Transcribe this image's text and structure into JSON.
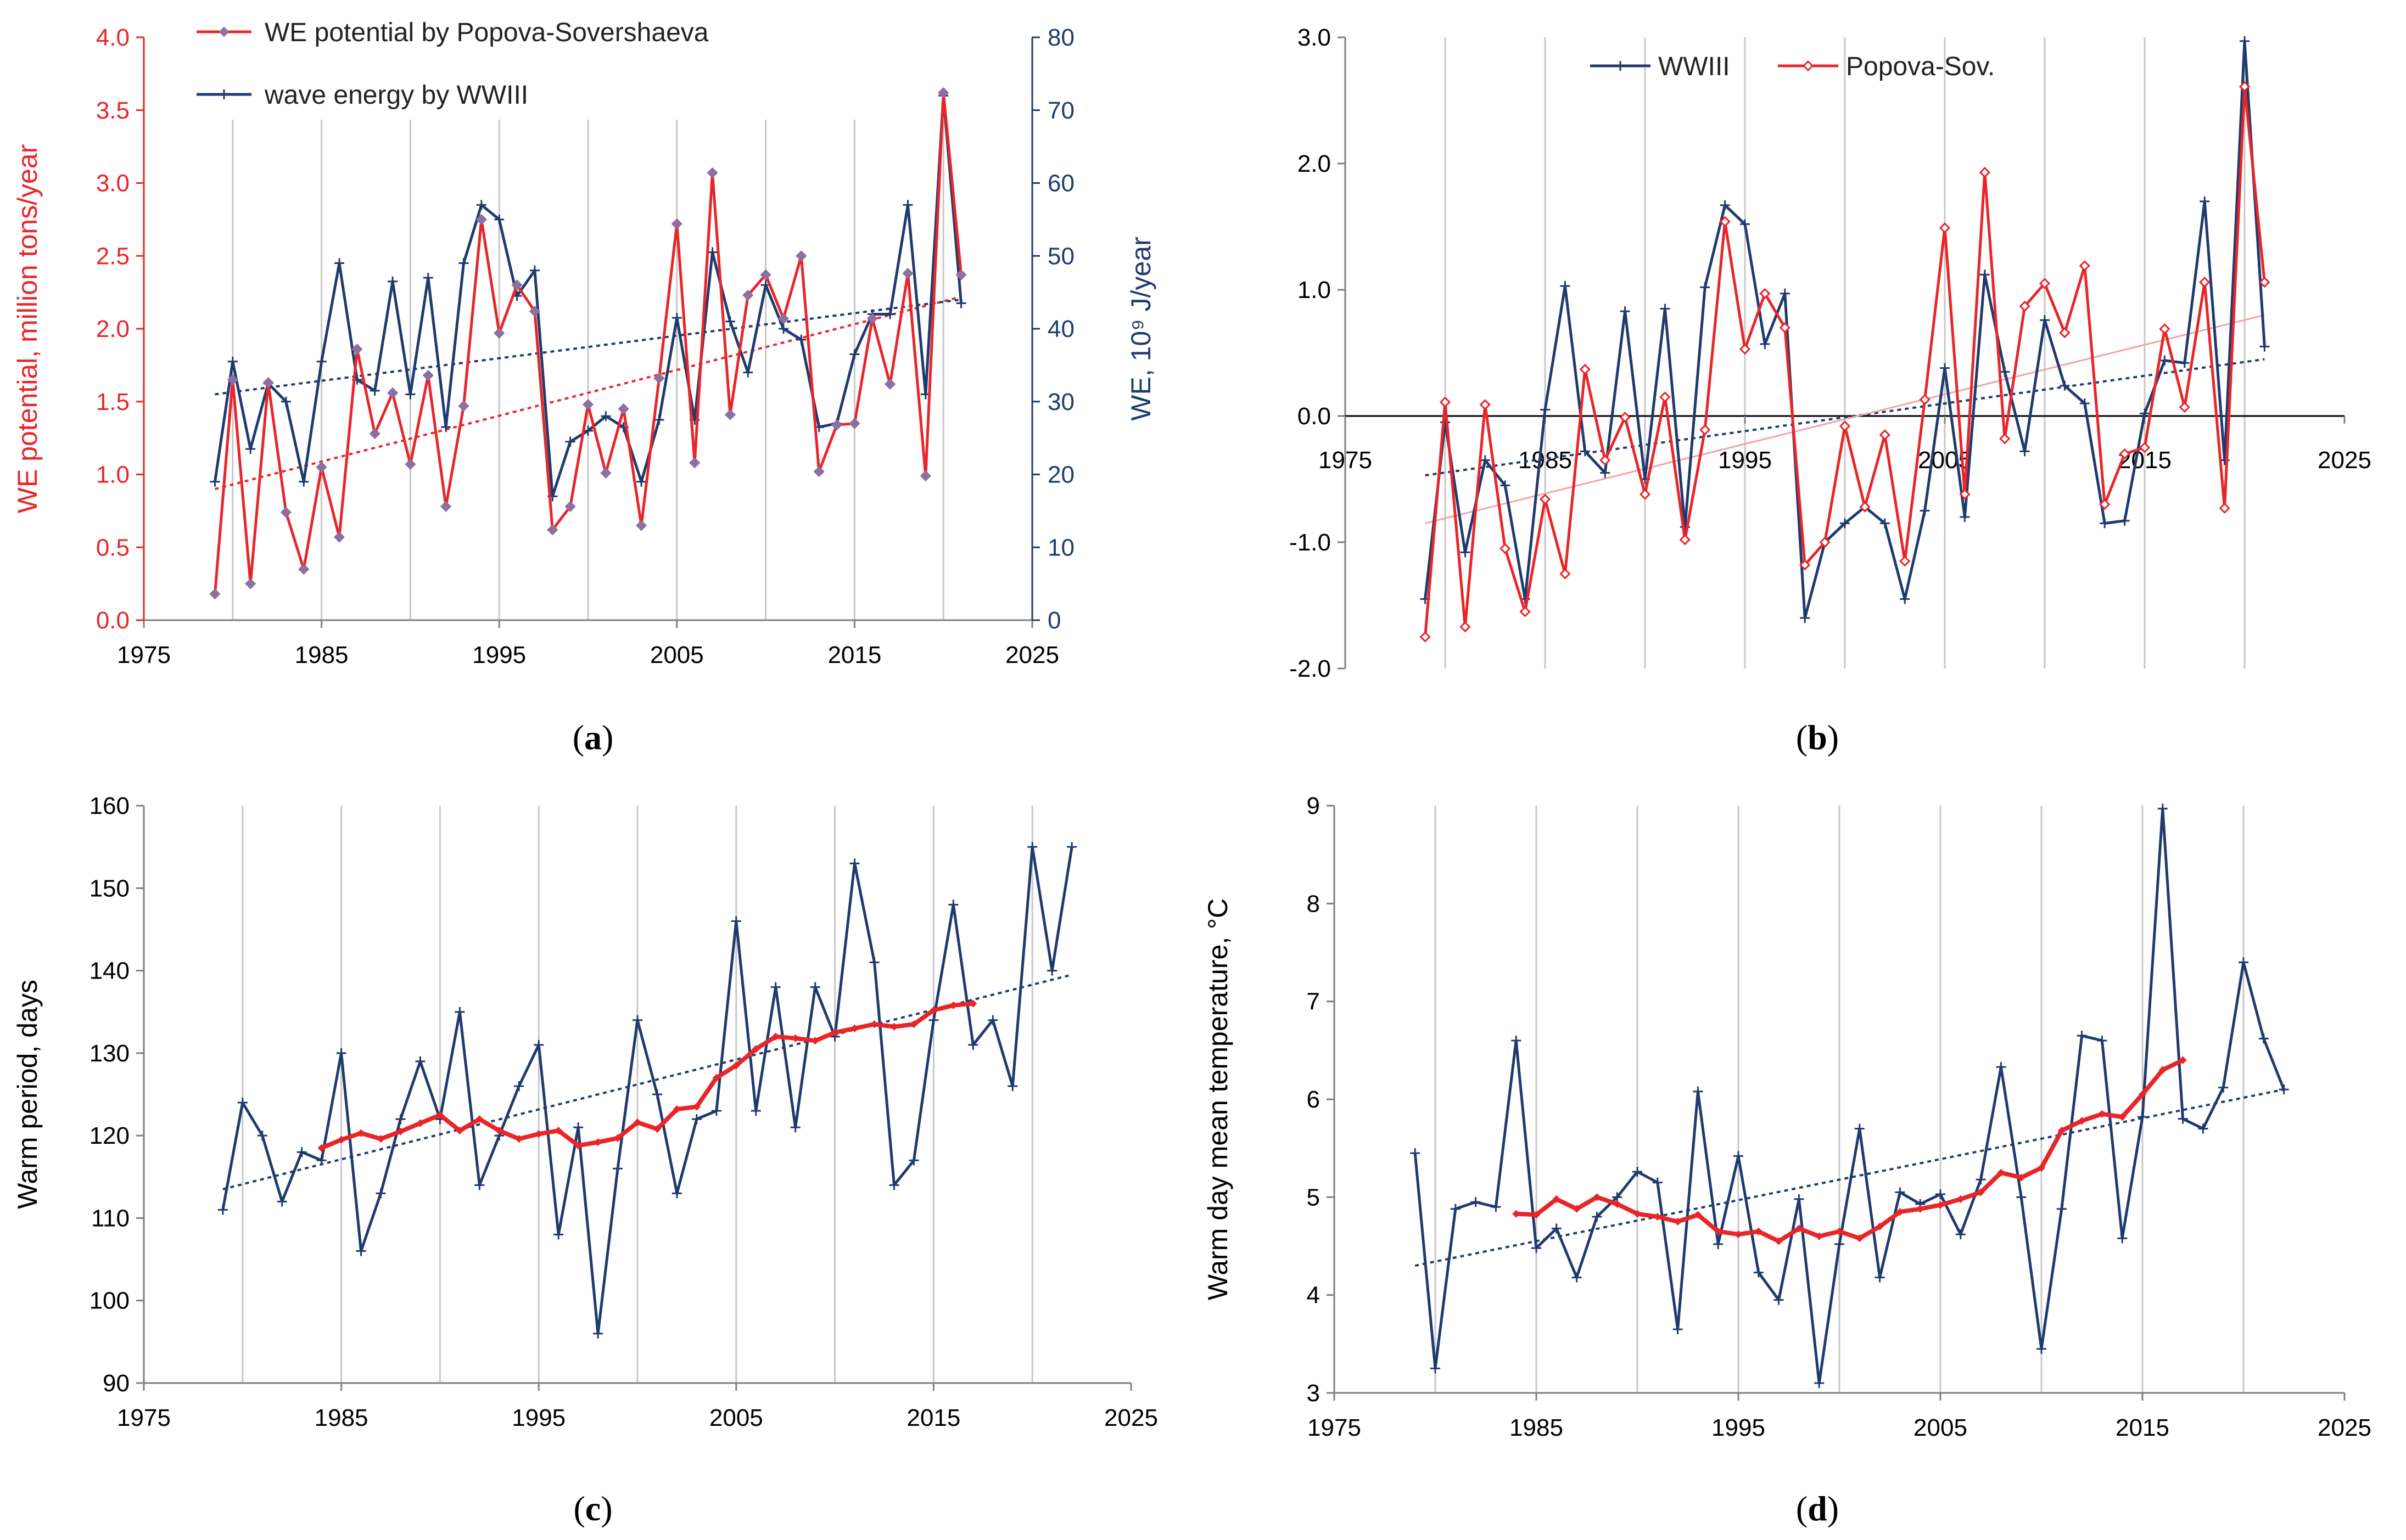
{
  "colors": {
    "red": "#e8262a",
    "navy": "#1f3b6e",
    "red_marker": "#8d6fa0",
    "grid": "#c8c8c8",
    "axis": "#7f7f7f"
  },
  "chart_data": [
    {
      "panel_label": "(a)",
      "type": "line",
      "title": "",
      "xlabel": "",
      "ylabel": "WE potential, million tons/year",
      "y2label": "WE, 10⁹ J/year",
      "xlim": [
        1975,
        2025
      ],
      "xticks": [
        1975,
        1985,
        1995,
        2005,
        2015,
        2025
      ],
      "ylim": [
        0,
        4
      ],
      "yticks": [
        "0.0",
        "0.5",
        "1.0",
        "1.5",
        "2.0",
        "2.5",
        "3.0",
        "3.5",
        "4.0"
      ],
      "y2lim": [
        0,
        80
      ],
      "y2ticks": [
        "0",
        "10",
        "20",
        "30",
        "40",
        "50",
        "60",
        "70",
        "80"
      ],
      "grid": "vertical",
      "legend": "top-left",
      "x": [
        1979,
        1980,
        1981,
        1982,
        1983,
        1984,
        1985,
        1986,
        1987,
        1988,
        1989,
        1990,
        1991,
        1992,
        1993,
        1994,
        1995,
        1996,
        1997,
        1998,
        1999,
        2000,
        2001,
        2002,
        2003,
        2004,
        2005,
        2006,
        2007,
        2008,
        2009,
        2010,
        2011,
        2012,
        2013,
        2014,
        2015,
        2016,
        2017,
        2018,
        2019,
        2020,
        2021
      ],
      "series": [
        {
          "name": "WE potential by Popova-Sovershaeva",
          "axis": "left",
          "color": "#e8262a",
          "values": [
            0.18,
            1.65,
            0.25,
            1.63,
            0.74,
            0.35,
            1.05,
            0.57,
            1.86,
            1.28,
            1.56,
            1.07,
            1.68,
            0.78,
            1.47,
            2.75,
            1.97,
            2.3,
            2.12,
            0.62,
            0.78,
            1.48,
            1.01,
            1.45,
            0.65,
            1.66,
            2.72,
            1.08,
            3.07,
            1.41,
            2.23,
            2.37,
            2.07,
            2.5,
            1.02,
            1.34,
            1.35,
            2.07,
            1.62,
            2.38,
            0.99,
            3.62,
            2.37
          ]
        },
        {
          "name": "wave energy by WWIII",
          "axis": "right",
          "color": "#1f3b6e",
          "values": [
            19,
            35.5,
            23.5,
            32.5,
            30,
            19,
            35.5,
            49,
            33,
            31.5,
            46.5,
            31,
            47,
            26.5,
            49,
            57,
            55,
            44.5,
            48,
            17,
            24.5,
            26,
            28,
            26.5,
            19,
            27.5,
            41.5,
            27.5,
            50.5,
            41,
            34,
            46,
            40,
            38.5,
            26.5,
            27,
            36.5,
            42,
            42,
            57,
            31,
            72,
            43.5
          ]
        }
      ],
      "trendlines": [
        {
          "series": "WE potential by Popova-Sovershaeva",
          "axis": "left",
          "x": [
            1979,
            2021
          ],
          "y": [
            0.9,
            2.22
          ]
        },
        {
          "series": "wave energy by WWIII",
          "axis": "right",
          "x": [
            1979,
            2021
          ],
          "y": [
            31,
            44
          ]
        }
      ]
    },
    {
      "panel_label": "(b)",
      "type": "line",
      "title": "",
      "xlabel": "",
      "ylabel": "",
      "xlim": [
        1975,
        2025
      ],
      "xticks": [
        1975,
        1985,
        1995,
        2005,
        2015,
        2025
      ],
      "ylim": [
        -2,
        3
      ],
      "yticks": [
        "-2.0",
        "-1.0",
        "0.0",
        "1.0",
        "2.0",
        "3.0"
      ],
      "grid": "vertical",
      "legend": "top-center",
      "x": [
        1979,
        1980,
        1981,
        1982,
        1983,
        1984,
        1985,
        1986,
        1987,
        1988,
        1989,
        1990,
        1991,
        1992,
        1993,
        1994,
        1995,
        1996,
        1997,
        1998,
        1999,
        2000,
        2001,
        2002,
        2003,
        2004,
        2005,
        2006,
        2007,
        2008,
        2009,
        2010,
        2011,
        2012,
        2013,
        2014,
        2015,
        2016,
        2017,
        2018,
        2019,
        2020,
        2021
      ],
      "series": [
        {
          "name": "WWIII",
          "color": "#1f3b6e",
          "values": [
            -1.45,
            -0.05,
            -1.08,
            -0.35,
            -0.55,
            -1.45,
            0.05,
            1.03,
            -0.28,
            -0.45,
            0.83,
            -0.5,
            0.85,
            -0.88,
            1.02,
            1.67,
            1.52,
            0.57,
            0.97,
            -1.6,
            -1.0,
            -0.85,
            -0.72,
            -0.85,
            -1.45,
            -0.75,
            0.38,
            -0.8,
            1.12,
            0.35,
            -0.28,
            0.76,
            0.24,
            0.1,
            -0.85,
            -0.83,
            0.02,
            0.44,
            0.42,
            1.7,
            -0.35,
            2.97,
            0.55
          ]
        },
        {
          "name": "Popova-Sov.",
          "color": "#e8262a",
          "values": [
            -1.75,
            0.11,
            -1.67,
            0.09,
            -1.05,
            -1.55,
            -0.66,
            -1.25,
            0.37,
            -0.35,
            -0.01,
            -0.62,
            0.15,
            -0.98,
            -0.11,
            1.54,
            0.53,
            0.97,
            0.7,
            -1.18,
            -1.0,
            -0.08,
            -0.72,
            -0.15,
            -1.15,
            0.13,
            1.49,
            -0.62,
            1.93,
            -0.18,
            0.87,
            1.05,
            0.66,
            1.19,
            -0.7,
            -0.3,
            -0.25,
            0.69,
            0.07,
            1.06,
            -0.73,
            2.61,
            1.06
          ]
        }
      ],
      "trendlines": [
        {
          "series": "WWIII",
          "x": [
            1979,
            2021
          ],
          "y": [
            -0.47,
            0.45
          ]
        },
        {
          "series": "Popova-Sov.",
          "x": [
            1979,
            2021
          ],
          "y": [
            -0.85,
            0.8
          ]
        }
      ]
    },
    {
      "panel_label": "(c)",
      "type": "line",
      "title": "",
      "xlabel": "",
      "ylabel": "Warm period, days",
      "xlim": [
        1975,
        2025
      ],
      "xticks": [
        1975,
        1985,
        1995,
        2005,
        2015,
        2025
      ],
      "ylim": [
        90,
        160
      ],
      "yticks": [
        "90",
        "100",
        "110",
        "120",
        "130",
        "140",
        "150",
        "160"
      ],
      "grid": "vertical",
      "legend": "none",
      "x": [
        1979,
        1980,
        1981,
        1982,
        1983,
        1984,
        1985,
        1986,
        1987,
        1988,
        1989,
        1990,
        1991,
        1992,
        1993,
        1994,
        1995,
        1996,
        1997,
        1998,
        1999,
        2000,
        2001,
        2002,
        2003,
        2004,
        2005,
        2006,
        2007,
        2008,
        2009,
        2010,
        2011,
        2012,
        2013,
        2014,
        2015,
        2016,
        2017,
        2018,
        2019,
        2020,
        2021,
        2022
      ],
      "series": [
        {
          "name": "",
          "role": "annual",
          "color": "#1f3b6e",
          "values": [
            111,
            124,
            120,
            112,
            118,
            117,
            130,
            106,
            113,
            122,
            129,
            122,
            135,
            114,
            120,
            126,
            131,
            108,
            121,
            96,
            116,
            134,
            125,
            113,
            122,
            123,
            146,
            123,
            138,
            121,
            138,
            132,
            153,
            141,
            114,
            117,
            134,
            148,
            131,
            134,
            126,
            155,
            140,
            155
          ]
        },
        {
          "name": "",
          "role": "moving-average",
          "color": "#e8262a",
          "x": [
            1984,
            1985,
            1986,
            1987,
            1988,
            1989,
            1990,
            1991,
            1992,
            1993,
            1994,
            1995,
            1996,
            1997,
            1998,
            1999,
            2000,
            2001,
            2002,
            2003,
            2004,
            2005,
            2006,
            2007,
            2008,
            2009,
            2010,
            2011,
            2012,
            2013,
            2014,
            2015,
            2016,
            2017
          ],
          "values": [
            118.5,
            119.5,
            120.3,
            119.6,
            120.5,
            121.5,
            122.5,
            120.6,
            122,
            120.6,
            119.6,
            120.2,
            120.6,
            118.8,
            119.2,
            119.7,
            121.6,
            120.8,
            123.2,
            123.5,
            127,
            128.5,
            130.5,
            132,
            131.8,
            131.5,
            132.5,
            133,
            133.5,
            133.2,
            133.5,
            135.2,
            135.8,
            136
          ]
        }
      ],
      "trendlines": [
        {
          "series": "annual",
          "x": [
            1979,
            2022
          ],
          "y": [
            113.5,
            139.5
          ]
        }
      ]
    },
    {
      "panel_label": "(d)",
      "type": "line",
      "title": "",
      "xlabel": "",
      "ylabel": "Warm day mean temperature, °C",
      "xlim": [
        1975,
        2025
      ],
      "xticks": [
        1975,
        1985,
        1995,
        2005,
        2015,
        2025
      ],
      "ylim": [
        3,
        9
      ],
      "yticks": [
        "3",
        "4",
        "5",
        "6",
        "7",
        "8",
        "9"
      ],
      "grid": "vertical",
      "legend": "none",
      "x": [
        1979,
        1980,
        1981,
        1982,
        1983,
        1984,
        1985,
        1986,
        1987,
        1988,
        1989,
        1990,
        1991,
        1992,
        1993,
        1994,
        1995,
        1996,
        1997,
        1998,
        1999,
        2000,
        2001,
        2002,
        2003,
        2004,
        2005,
        2006,
        2007,
        2008,
        2009,
        2010,
        2011,
        2012,
        2013,
        2014,
        2015,
        2016,
        2017,
        2018,
        2019,
        2020,
        2021,
        2022
      ],
      "series": [
        {
          "name": "",
          "role": "annual",
          "color": "#1f3b6e",
          "values": [
            5.45,
            3.25,
            4.88,
            4.95,
            4.9,
            6.6,
            4.48,
            4.68,
            4.18,
            4.8,
            5.0,
            5.26,
            5.15,
            3.65,
            6.08,
            4.52,
            5.42,
            4.23,
            3.95,
            4.98,
            3.1,
            4.52,
            5.7,
            4.18,
            5.05,
            4.93,
            5.03,
            4.62,
            5.18,
            6.33,
            5.0,
            3.45,
            4.88,
            6.65,
            6.6,
            4.58,
            5.82,
            8.97,
            5.8,
            5.7,
            6.12,
            7.4,
            6.62,
            6.1
          ]
        },
        {
          "name": "",
          "role": "moving-average",
          "color": "#e8262a",
          "x": [
            1984,
            1985,
            1986,
            1987,
            1988,
            1989,
            1990,
            1991,
            1992,
            1993,
            1994,
            1995,
            1996,
            1997,
            1998,
            1999,
            2000,
            2001,
            2002,
            2003,
            2004,
            2005,
            2006,
            2007,
            2008,
            2009,
            2010,
            2011,
            2012,
            2013,
            2014,
            2015,
            2016,
            2017
          ],
          "values": [
            4.83,
            4.82,
            4.98,
            4.88,
            5.0,
            4.93,
            4.83,
            4.8,
            4.75,
            4.82,
            4.65,
            4.62,
            4.65,
            4.55,
            4.68,
            4.6,
            4.65,
            4.58,
            4.7,
            4.85,
            4.88,
            4.92,
            4.98,
            5.05,
            5.25,
            5.2,
            5.3,
            5.68,
            5.78,
            5.85,
            5.82,
            6.05,
            6.3,
            6.4
          ]
        }
      ],
      "trendlines": [
        {
          "series": "annual",
          "x": [
            1979,
            2022
          ],
          "y": [
            4.3,
            6.1
          ]
        }
      ]
    }
  ]
}
